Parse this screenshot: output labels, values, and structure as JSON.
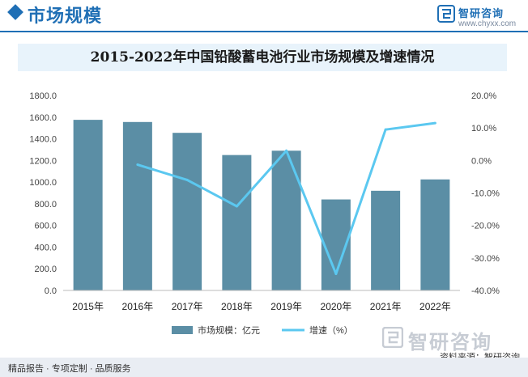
{
  "header": {
    "section_title": "市场规模",
    "brand_name": "智研咨询",
    "brand_url": "www.chyxx.com"
  },
  "footer": {
    "services": "精品报告 · 专项定制 · 品质服务",
    "source": "资料来源：智研咨询",
    "watermark_brand": "智研咨询"
  },
  "colors": {
    "bar": "#5b8ea5",
    "line": "#5bc8f0",
    "brand": "#1f6fb5"
  },
  "chart_data": {
    "type": "bar",
    "title": "2015-2022年中国铅酸蓄电池行业市场规模及增速情况",
    "categories": [
      "2015年",
      "2016年",
      "2017年",
      "2018年",
      "2019年",
      "2020年",
      "2021年",
      "2022年"
    ],
    "series": [
      {
        "name": "市场规模：亿元",
        "type": "bar",
        "axis": "left",
        "values": [
          1575,
          1555,
          1455,
          1250,
          1290,
          840,
          920,
          1025
        ]
      },
      {
        "name": "增速（%）",
        "type": "line",
        "axis": "right",
        "values": [
          null,
          -1.3,
          -6.0,
          -14.1,
          3.0,
          -34.9,
          9.5,
          11.5
        ]
      }
    ],
    "y_left": {
      "min": 0,
      "max": 1800,
      "step": 200,
      "tick_labels": [
        "0.0",
        "200.0",
        "400.0",
        "600.0",
        "800.0",
        "1000.0",
        "1200.0",
        "1400.0",
        "1600.0",
        "1800.0"
      ]
    },
    "y_right": {
      "min": -40,
      "max": 20,
      "step": 10,
      "tick_labels": [
        "-40.0%",
        "-30.0%",
        "-20.0%",
        "-10.0%",
        "0.0%",
        "10.0%",
        "20.0%"
      ]
    },
    "legend_position": "bottom",
    "grid": false
  }
}
